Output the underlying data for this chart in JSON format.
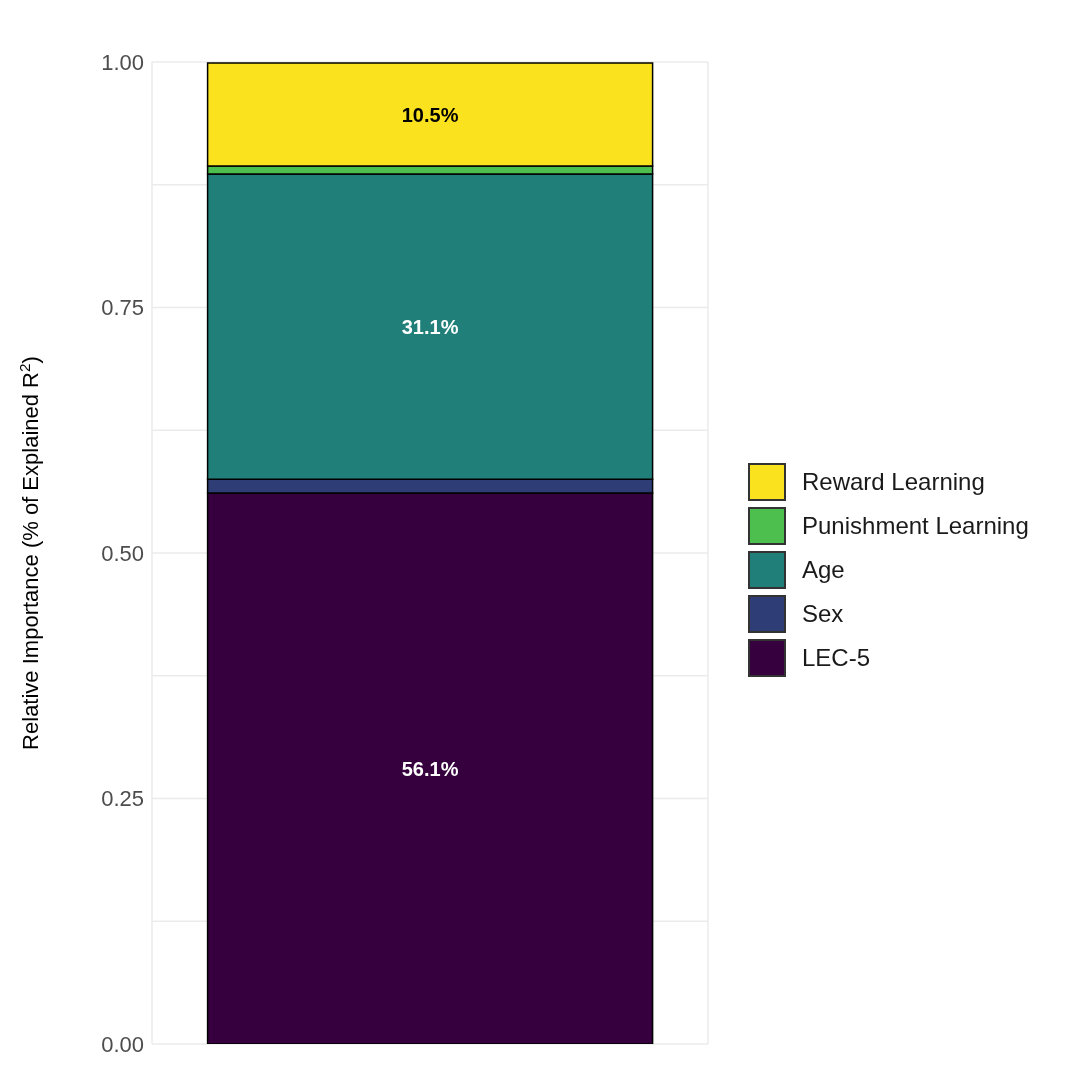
{
  "chart_data": {
    "type": "bar",
    "stacked": true,
    "ylabel": "Relative Importance (% of Explained R$^{2}$)",
    "categories": [
      null
    ],
    "series": [
      {
        "name": "LEC-5",
        "color": "#35003d",
        "values": [
          0.561
        ],
        "value_labels": [
          "56.1%"
        ]
      },
      {
        "name": "Sex",
        "color": "#2e3d76",
        "values": [
          0.014
        ],
        "value_labels": [
          null
        ]
      },
      {
        "name": "Age",
        "color": "#207f79",
        "values": [
          0.311
        ],
        "value_labels": [
          "31.1%"
        ]
      },
      {
        "name": "Punishment Learning",
        "color": "#4cbf4f",
        "values": [
          0.008
        ],
        "value_labels": [
          null
        ]
      },
      {
        "name": "Reward Learning",
        "color": "#fbe21e",
        "values": [
          0.105
        ],
        "value_labels": [
          "10.5%"
        ]
      }
    ],
    "ylim": [
      0,
      1
    ],
    "yticks": [
      {
        "value": 0,
        "label": "0.00"
      },
      {
        "value": 0.125,
        "label": null
      },
      {
        "value": 0.25,
        "label": "0.25"
      },
      {
        "value": 0.375,
        "label": null
      },
      {
        "value": 0.5,
        "label": "0.50"
      },
      {
        "value": 0.625,
        "label": null
      },
      {
        "value": 0.75,
        "label": "0.75"
      },
      {
        "value": 0.875,
        "label": null
      },
      {
        "value": 1,
        "label": "1.00"
      }
    ],
    "grid": true,
    "legend": "right"
  }
}
